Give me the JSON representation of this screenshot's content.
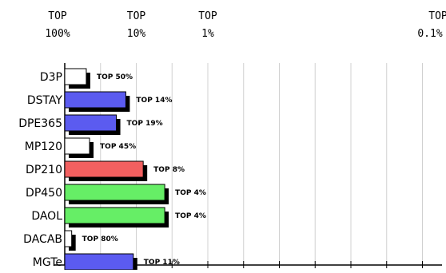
{
  "chart_data": {
    "type": "bar",
    "orientation": "horizontal",
    "scale": "log",
    "top_axis": [
      {
        "line1": "TOP",
        "line2": "100%",
        "value": 100
      },
      {
        "line1": "TOP",
        "line2": "10%",
        "value": 10
      },
      {
        "line1": "TOP",
        "line2": "1%",
        "value": 1
      },
      {
        "line1": "TOP",
        "line2": "0.1%",
        "value": 0.1
      }
    ],
    "grid": true,
    "categories": [
      "D3P",
      "DSTAY",
      "DPE365",
      "MP120",
      "DP210",
      "DP450",
      "DAOL",
      "DACAB",
      "MGTe"
    ],
    "values": [
      50,
      14,
      19,
      45,
      8,
      4,
      4,
      80,
      11
    ],
    "labels": [
      "TOP 50%",
      "TOP 14%",
      "TOP 19%",
      "TOP 45%",
      "TOP 8%",
      "TOP 4%",
      "TOP 4%",
      "TOP 80%",
      "TOP 11%"
    ],
    "colors": [
      "#ffffff",
      "#5b5bf0",
      "#5b5bf0",
      "#ffffff",
      "#f26060",
      "#66ee66",
      "#66ee66",
      "#ffffff",
      "#5b5bf0"
    ]
  }
}
